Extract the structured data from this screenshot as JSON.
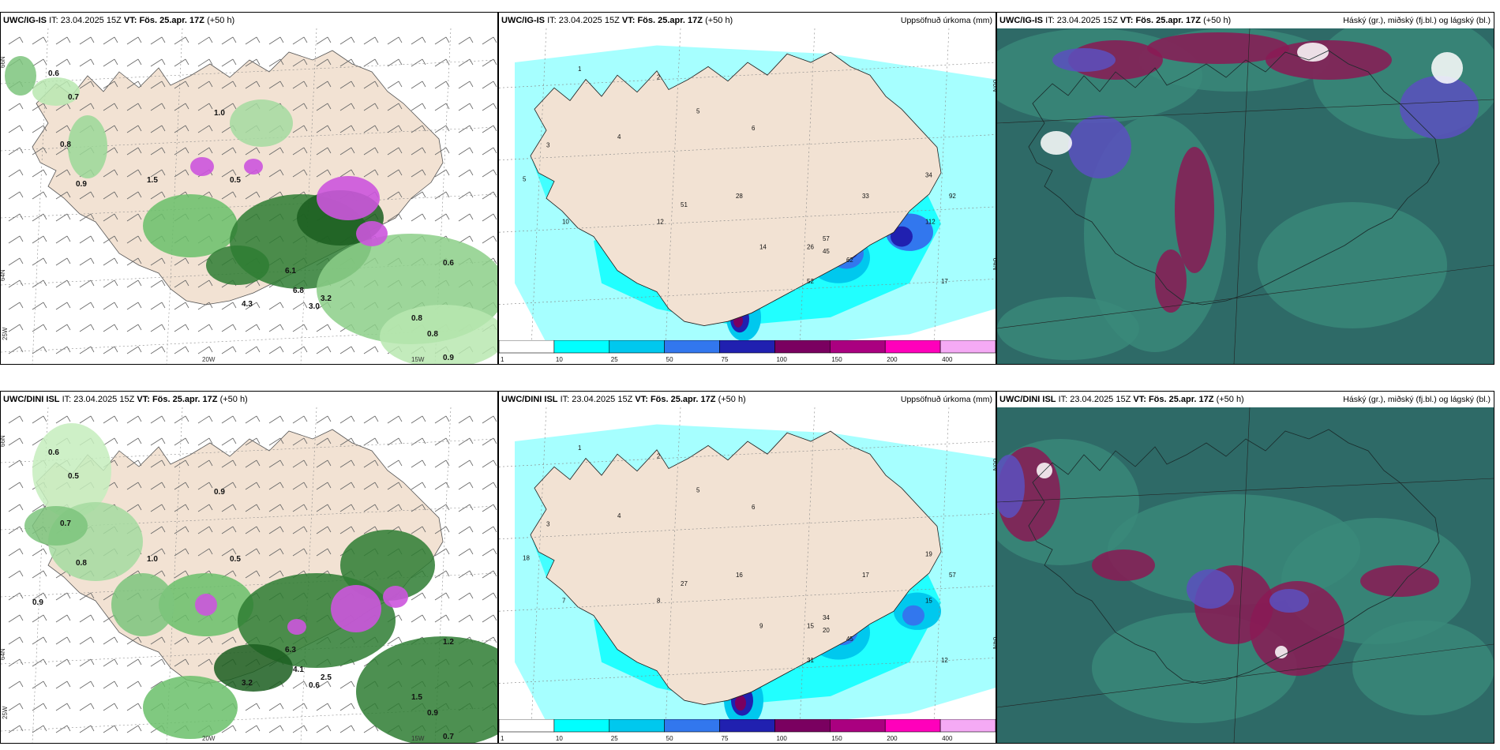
{
  "panels": [
    {
      "id": "wind-top",
      "model": "UWC/IG-IS",
      "it": "23.04.2025 15Z",
      "vt": "Fös. 25.apr. 17Z",
      "lead": "(+50 h)",
      "right_label": "",
      "lat_labels": [
        "66N",
        "64N"
      ],
      "lon_labels": [
        "25W",
        "20W",
        "15W"
      ],
      "values": [
        "0.6",
        "0.7",
        "0.8",
        "0.9",
        "1.0",
        "1.5",
        "0.5",
        "3.0",
        "3.2",
        "6.1",
        "6.8",
        "4.3",
        "0.8",
        "0.9",
        "0.8",
        "0.6"
      ]
    },
    {
      "id": "precip-top",
      "model": "UWC/IG-IS",
      "it": "23.04.2025 15Z",
      "vt": "Fös. 25.apr. 17Z",
      "lead": "(+50 h)",
      "right_label": "Uppsöfnuð úrkoma (mm)",
      "lat_labels": [
        "66N",
        "64N"
      ],
      "values": [
        "1",
        "2",
        "3",
        "4",
        "5",
        "6",
        "10",
        "12",
        "14",
        "17",
        "26",
        "28",
        "33",
        "34",
        "45",
        "51",
        "52",
        "57",
        "62",
        "92",
        "112",
        "5"
      ],
      "colorbar_labels": [
        "1",
        "10",
        "25",
        "50",
        "75",
        "100",
        "150",
        "200",
        "400"
      ]
    },
    {
      "id": "cloud-top",
      "model": "UWC/IG-IS",
      "it": "23.04.2025 15Z",
      "vt": "Fös. 25.apr. 17Z",
      "lead": "(+50 h)",
      "right_label": "Háský (gr.), miðský (fj.bl.) og lágský (bl.)"
    },
    {
      "id": "wind-bottom",
      "model": "UWC/DINI ISL",
      "it": "23.04.2025 15Z",
      "vt": "Fös. 25.apr. 17Z",
      "lead": "(+50 h)",
      "right_label": "",
      "lat_labels": [
        "66N",
        "64N"
      ],
      "lon_labels": [
        "25W",
        "20W",
        "15W"
      ],
      "values": [
        "0.6",
        "0.5",
        "0.7",
        "0.8",
        "0.9",
        "1.0",
        "0.5",
        "0.6",
        "2.5",
        "6.3",
        "4.1",
        "3.2",
        "0.9",
        "0.7",
        "1.5",
        "1.2",
        "0.9"
      ]
    },
    {
      "id": "precip-bottom",
      "model": "UWC/DINI ISL",
      "it": "23.04.2025 15Z",
      "vt": "Fös. 25.apr. 17Z",
      "lead": "(+50 h)",
      "right_label": "Uppsöfnuð úrkoma (mm)",
      "lat_labels": [
        "66N",
        "64N"
      ],
      "values": [
        "1",
        "2",
        "3",
        "4",
        "5",
        "6",
        "7",
        "8",
        "9",
        "12",
        "15",
        "16",
        "17",
        "19",
        "20",
        "27",
        "31",
        "34",
        "45",
        "57",
        "15",
        "18"
      ],
      "colorbar_labels": [
        "1",
        "10",
        "25",
        "50",
        "75",
        "100",
        "150",
        "200",
        "400"
      ]
    },
    {
      "id": "cloud-bottom",
      "model": "UWC/DINI ISL",
      "it": "23.04.2025 15Z",
      "vt": "Fös. 25.apr. 17Z",
      "lead": "(+50 h)",
      "right_label": "Háský (gr.), miðský (fj.bl.) og lágský (bl.)"
    }
  ],
  "header_tags": {
    "it": "IT:",
    "vt": "VT:"
  },
  "colors": {
    "land": "#f2e2d3",
    "precip": [
      "#ffffff",
      "#00ffff",
      "#00c8ee",
      "#3277ee",
      "#2020b0",
      "#7a0060",
      "#aa0080",
      "#ff00bb",
      "#f5aaf5"
    ],
    "cloud_base": "#2e6a67",
    "cloud_high": "#3a8a7a",
    "cloud_mid": "#8a1a55",
    "cloud_low": "#5a50c0"
  }
}
